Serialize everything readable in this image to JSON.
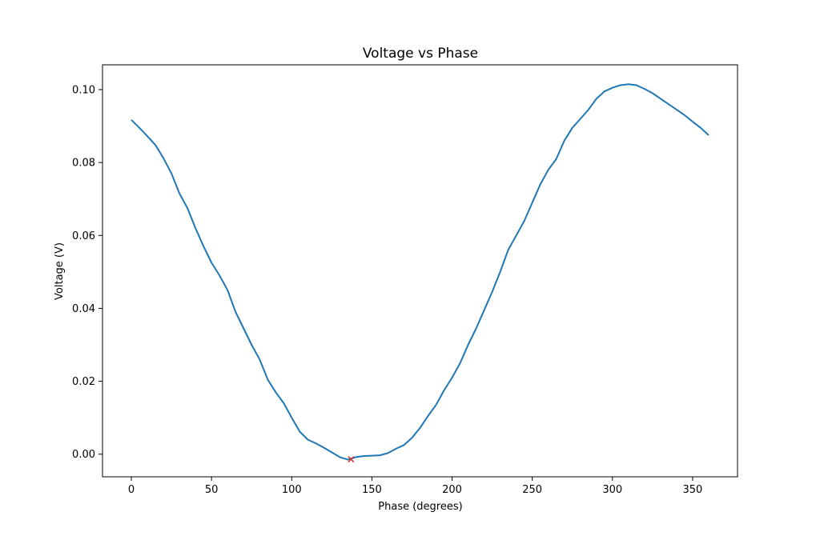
{
  "chart_data": {
    "type": "line",
    "title": "Voltage vs Phase",
    "xlabel": "Phase (degrees)",
    "ylabel": "Voltage (V)",
    "xlim": [
      -18,
      378
    ],
    "ylim": [
      -0.0062,
      0.1068
    ],
    "xticks": [
      0,
      50,
      100,
      150,
      200,
      250,
      300,
      350
    ],
    "xtick_labels": [
      "0",
      "50",
      "100",
      "150",
      "200",
      "250",
      "300",
      "350"
    ],
    "yticks": [
      0.0,
      0.02,
      0.04,
      0.06,
      0.08,
      0.1
    ],
    "ytick_labels": [
      "0.00",
      "0.02",
      "0.04",
      "0.06",
      "0.08",
      "0.10"
    ],
    "grid": false,
    "legend": false,
    "series": [
      {
        "color": "#1f77b4",
        "x": [
          0,
          5,
          10,
          15,
          20,
          25,
          30,
          35,
          40,
          45,
          50,
          55,
          60,
          65,
          70,
          75,
          80,
          85,
          90,
          95,
          100,
          105,
          110,
          115,
          120,
          125,
          130,
          135,
          140,
          145,
          150,
          155,
          160,
          165,
          170,
          175,
          180,
          185,
          190,
          195,
          200,
          205,
          210,
          215,
          220,
          225,
          230,
          235,
          240,
          245,
          250,
          255,
          260,
          265,
          270,
          275,
          280,
          285,
          290,
          295,
          300,
          305,
          310,
          315,
          320,
          325,
          330,
          335,
          340,
          345,
          350,
          355,
          360
        ],
        "y": [
          0.0917,
          0.0895,
          0.0872,
          0.0848,
          0.0812,
          0.077,
          0.0715,
          0.0675,
          0.062,
          0.057,
          0.0525,
          0.049,
          0.045,
          0.039,
          0.0345,
          0.03,
          0.026,
          0.0205,
          0.017,
          0.014,
          0.01,
          0.0062,
          0.004,
          0.003,
          0.0018,
          0.0005,
          -0.0008,
          -0.0015,
          -0.0008,
          -0.0005,
          -0.0004,
          -0.0003,
          0.0003,
          0.0015,
          0.0025,
          0.0045,
          0.0072,
          0.0105,
          0.0135,
          0.0175,
          0.021,
          0.025,
          0.03,
          0.0345,
          0.0395,
          0.0445,
          0.05,
          0.056,
          0.06,
          0.064,
          0.069,
          0.074,
          0.078,
          0.081,
          0.086,
          0.0895,
          0.092,
          0.0945,
          0.0975,
          0.0995,
          0.1005,
          0.1012,
          0.1015,
          0.1012,
          0.1002,
          0.099,
          0.0975,
          0.096,
          0.0945,
          0.093,
          0.0912,
          0.0895,
          0.0875
        ]
      }
    ],
    "marker": {
      "x": 137,
      "y": -0.0014,
      "symbol": "x",
      "color": "#d62728"
    }
  }
}
